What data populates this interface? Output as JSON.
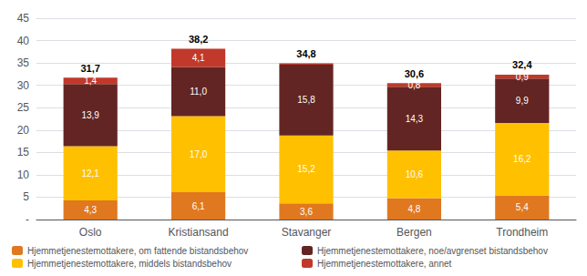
{
  "chart_data": {
    "type": "bar",
    "stacked": true,
    "categories": [
      "Oslo",
      "Kristiansand",
      "Stavanger",
      "Bergen",
      "Trondheim"
    ],
    "series": [
      {
        "name": "Hjemmetjenestemottakere, om fattende bistandsbehov",
        "color": "#E07820",
        "values": [
          4.3,
          6.1,
          3.6,
          4.8,
          5.4
        ],
        "value_labels": [
          "4,3",
          "6,1",
          "3,6",
          "4,8",
          "5,4"
        ]
      },
      {
        "name": "Hjemmetjenestemottakere, middels bistandsbehov",
        "color": "#FFC000",
        "values": [
          12.1,
          17.0,
          15.2,
          10.6,
          16.2
        ],
        "value_labels": [
          "12,1",
          "17,0",
          "15,2",
          "10,6",
          "16,2"
        ]
      },
      {
        "name": "Hjemmetjenestemottakere, noe/avgrenset bistandsbehov",
        "color": "#632523",
        "values": [
          13.9,
          11.0,
          15.8,
          14.3,
          9.9
        ],
        "value_labels": [
          "13,9",
          "11,0",
          "15,8",
          "14,3",
          "9,9"
        ]
      },
      {
        "name": "Hjemmetjenestemottakere, annet",
        "color": "#C0392B",
        "values": [
          1.4,
          4.1,
          0.3,
          0.8,
          0.9
        ],
        "value_labels": [
          "1,4",
          "4,1",
          null,
          "0,8",
          "0,9"
        ]
      }
    ],
    "totals": [
      31.7,
      38.2,
      34.8,
      30.6,
      32.4
    ],
    "total_labels": [
      "31,7",
      "38,2",
      "34,8",
      "30,6",
      "32,4"
    ],
    "ylim": [
      0,
      45
    ],
    "yticks": [
      {
        "value": 0,
        "label": "-"
      },
      5,
      10,
      15,
      20,
      25,
      30,
      35,
      40,
      45
    ],
    "grid": true,
    "data_labels": true,
    "legend": "bottom"
  }
}
